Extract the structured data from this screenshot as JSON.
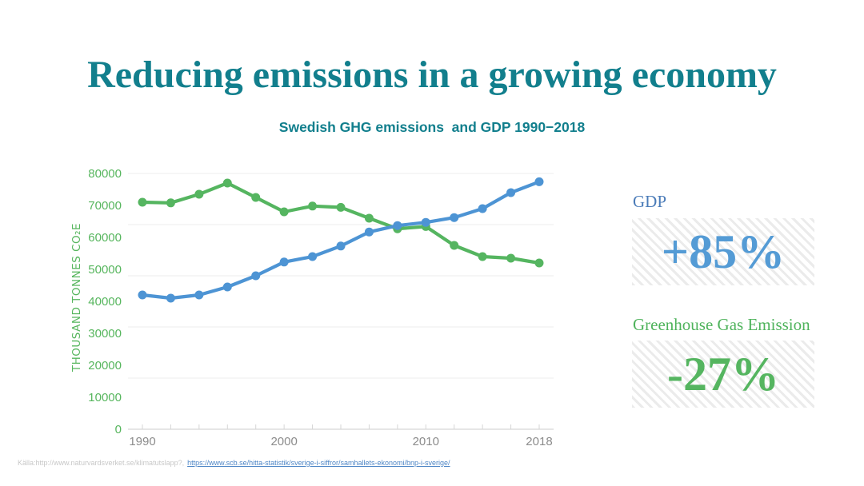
{
  "slide": {
    "title": "Reducing emissions in a growing economy",
    "footer": {
      "source_prefix": "Källa:http://www.naturvardsverket.se/klimatutslapp?,",
      "source_link": "https://www.scb.se/hitta-statistik/sverige-i-siffror/samhallets-ekonomi/bnp-i-sverige/"
    }
  },
  "stats": {
    "gdp": {
      "label": "GDP",
      "value": "+85%",
      "value_color": "#549bd5",
      "label_color": "#4a7bb8"
    },
    "ghg": {
      "label": "Greenhouse Gas Emission",
      "value": "-27%",
      "value_color": "#55b560",
      "label_color": "#4fb35c"
    }
  },
  "chart_data": {
    "type": "line",
    "title": "Swedish GHG emissions  and GDP 1990−2018",
    "ylabel": "THOUSAND TONNES CO₂E",
    "xlabel": "",
    "x": [
      1990,
      1992,
      1994,
      1996,
      1998,
      2000,
      2002,
      2004,
      2006,
      2008,
      2010,
      2012,
      2014,
      2016,
      2018
    ],
    "x_tick_values": [
      1990,
      2000,
      2010,
      2018
    ],
    "x_tick_labels": [
      "1990",
      "2000",
      "2010",
      "2018"
    ],
    "y_ticks": [
      0,
      10000,
      20000,
      30000,
      40000,
      50000,
      60000,
      70000,
      80000
    ],
    "gridline_values": [
      16000,
      32000,
      48000,
      64000,
      80000
    ],
    "ylim": [
      0,
      80000
    ],
    "grid": true,
    "legend_position": "none",
    "series": [
      {
        "name": "GDP",
        "color": "#4d94d4",
        "values": [
          42000,
          41000,
          42000,
          44500,
          48000,
          52300,
          54000,
          57300,
          61700,
          63700,
          64700,
          66200,
          69000,
          74000,
          77400
        ]
      },
      {
        "name": "Greenhouse Gas Emissions",
        "color": "#55b560",
        "values": [
          71000,
          70800,
          73500,
          77000,
          72500,
          68000,
          69800,
          69400,
          66000,
          62700,
          63400,
          57500,
          54000,
          53500,
          52000
        ]
      }
    ],
    "style": {
      "y_tick_color": "#57b65e",
      "x_tick_color": "#8c8c8c",
      "gridline_color": "#ececec",
      "axis_color": "#d6d6d6"
    }
  }
}
